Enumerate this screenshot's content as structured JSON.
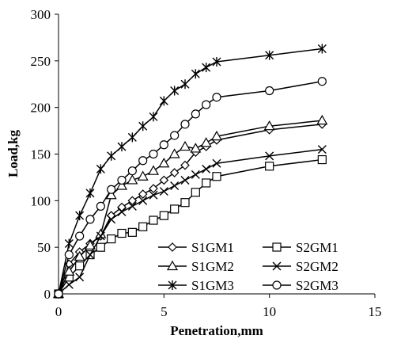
{
  "chart_data": {
    "type": "line",
    "xlabel": "Penetration,mm",
    "ylabel": "Load,kg",
    "xlim": [
      0,
      15
    ],
    "ylim": [
      0,
      300
    ],
    "x_ticks": [
      "0",
      "5",
      "10",
      "15"
    ],
    "y_ticks": [
      "0",
      "50",
      "100",
      "150",
      "200",
      "250",
      "300"
    ],
    "grid": false,
    "legend_placement": "bottom-right",
    "series": [
      {
        "name": "S1GM1",
        "marker": "diamond",
        "x": [
          0,
          0.5,
          1,
          1.5,
          2,
          2.5,
          3,
          3.5,
          4,
          4.5,
          5,
          5.5,
          6,
          6.5,
          7,
          7.5,
          10,
          12.5
        ],
        "y": [
          0,
          32,
          45,
          54,
          62,
          84,
          93,
          100,
          107,
          113,
          122,
          130,
          138,
          152,
          158,
          165,
          176,
          182
        ]
      },
      {
        "name": "S2GM1",
        "marker": "square",
        "x": [
          0,
          0.5,
          1,
          1.5,
          2,
          2.5,
          3,
          3.5,
          4,
          4.5,
          5,
          5.5,
          6,
          6.5,
          7,
          7.5,
          10,
          12.5
        ],
        "y": [
          0,
          18,
          30,
          42,
          50,
          59,
          65,
          66,
          72,
          79,
          84,
          91,
          98,
          109,
          119,
          126,
          137,
          144
        ]
      },
      {
        "name": "S1GM2",
        "marker": "triangle",
        "x": [
          0,
          0.5,
          1,
          1.5,
          2,
          2.5,
          3,
          3.5,
          4,
          4.5,
          5,
          5.5,
          6,
          6.5,
          7,
          7.5,
          10,
          12.5
        ],
        "y": [
          0,
          24,
          40,
          52,
          64,
          106,
          116,
          122,
          126,
          132,
          140,
          150,
          158,
          156,
          162,
          169,
          180,
          186
        ]
      },
      {
        "name": "S2GM2",
        "marker": "x",
        "x": [
          0,
          0.5,
          1,
          1.5,
          2,
          2.5,
          3,
          3.5,
          4,
          4.5,
          5,
          5.5,
          6,
          6.5,
          7,
          7.5,
          10,
          12.5
        ],
        "y": [
          0,
          10,
          18,
          42,
          62,
          80,
          88,
          94,
          100,
          106,
          110,
          116,
          122,
          128,
          134,
          140,
          148,
          155
        ]
      },
      {
        "name": "S1GM3",
        "marker": "star",
        "x": [
          0,
          0.5,
          1,
          1.5,
          2,
          2.5,
          3,
          3.5,
          4,
          4.5,
          5,
          5.5,
          6,
          6.5,
          7,
          7.5,
          10,
          12.5
        ],
        "y": [
          0,
          54,
          84,
          108,
          134,
          148,
          158,
          168,
          180,
          190,
          207,
          218,
          225,
          236,
          243,
          249,
          256,
          263
        ]
      },
      {
        "name": "S2GM3",
        "marker": "circle",
        "x": [
          0,
          0.5,
          1,
          1.5,
          2,
          2.5,
          3,
          3.5,
          4,
          4.5,
          5,
          5.5,
          6,
          6.5,
          7,
          7.5,
          10,
          12.5
        ],
        "y": [
          0,
          42,
          62,
          80,
          94,
          112,
          122,
          132,
          143,
          150,
          160,
          170,
          182,
          193,
          203,
          211,
          218,
          228
        ]
      }
    ]
  }
}
